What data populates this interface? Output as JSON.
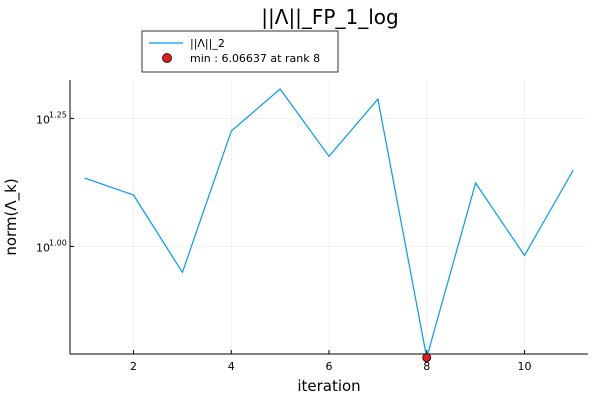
{
  "chart_data": {
    "type": "line",
    "title": "||Λ||_FP_1_log",
    "xlabel": "iteration",
    "ylabel": "norm(Λ_k)",
    "y_scale": "log10",
    "xlim": [
      0.7,
      11.3
    ],
    "ylim_log10": [
      0.79,
      1.325
    ],
    "x_ticks": [
      2,
      4,
      6,
      8,
      10
    ],
    "y_ticks_log10": [
      {
        "value": 1.0,
        "base": "10",
        "exp": "1.00"
      },
      {
        "value": 1.25,
        "base": "10",
        "exp": "1.25"
      }
    ],
    "grid": true,
    "legend_position": "top-left outside",
    "series": [
      {
        "name": "||Λ||_2",
        "color": "#009AFA",
        "x": [
          1,
          2,
          3,
          4,
          5,
          6,
          7,
          8,
          9,
          10,
          11
        ],
        "y": [
          13.6,
          12.6,
          8.9,
          16.8,
          20.3,
          15.0,
          19.4,
          6.06637,
          13.3,
          9.6,
          14.1
        ]
      }
    ],
    "min_marker": {
      "label": "min : 6.06637 at rank 8",
      "x": 8,
      "y": 6.06637,
      "color": "#E51A1A"
    }
  }
}
